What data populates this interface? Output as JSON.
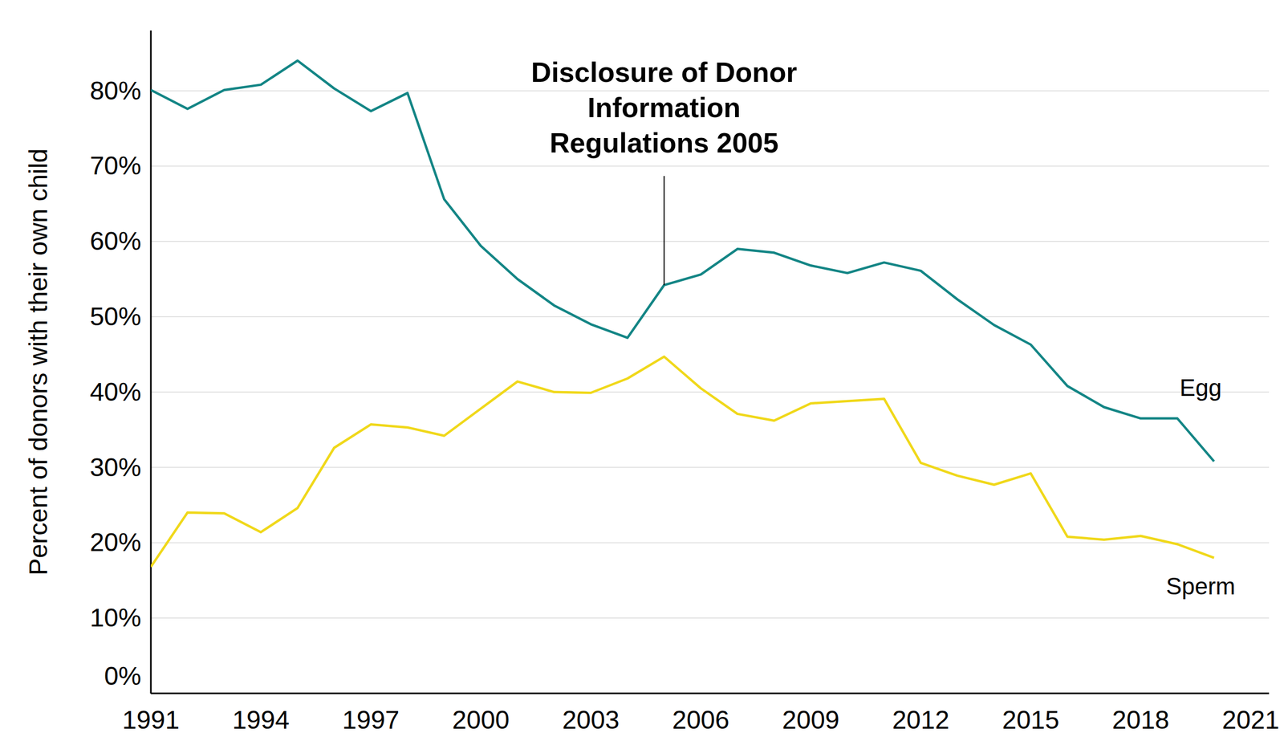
{
  "chart_data": {
    "type": "line",
    "y_label": "Percent of donors with their own child",
    "x": [
      1991,
      1992,
      1993,
      1994,
      1995,
      1996,
      1997,
      1998,
      1999,
      2000,
      2001,
      2002,
      2003,
      2004,
      2005,
      2006,
      2007,
      2008,
      2009,
      2010,
      2011,
      2012,
      2013,
      2014,
      2015,
      2016,
      2017,
      2018,
      2019,
      2020
    ],
    "series": [
      {
        "name": "Egg",
        "color": "#138585",
        "values": [
          80.1,
          77.6,
          80.1,
          80.8,
          84.0,
          80.3,
          77.3,
          79.7,
          65.6,
          59.4,
          55.0,
          51.5,
          49.0,
          47.2,
          54.2,
          55.6,
          59.0,
          58.5,
          56.8,
          55.8,
          57.2,
          56.1,
          52.3,
          48.9,
          46.3,
          40.8,
          38.0,
          36.5,
          36.5,
          30.8
        ]
      },
      {
        "name": "Sperm",
        "color": "#f0d81a",
        "values": [
          16.8,
          24.0,
          23.9,
          21.4,
          24.6,
          32.6,
          35.7,
          35.3,
          34.2,
          37.8,
          41.4,
          40.0,
          39.9,
          41.8,
          44.7,
          40.5,
          37.1,
          36.2,
          38.5,
          38.8,
          39.1,
          30.6,
          28.9,
          27.7,
          29.2,
          20.8,
          20.4,
          20.9,
          19.8,
          18.0
        ]
      }
    ],
    "xlim": [
      1991,
      2021.5
    ],
    "xticks": [
      1991,
      1994,
      1997,
      2000,
      2003,
      2006,
      2009,
      2012,
      2015,
      2018,
      2021
    ],
    "ylim": [
      0,
      88
    ],
    "yticks": [
      {
        "value": 0,
        "label": "0%"
      },
      {
        "value": 10,
        "label": "10%"
      },
      {
        "value": 20,
        "label": "20%"
      },
      {
        "value": 30,
        "label": "30%"
      },
      {
        "value": 40,
        "label": "40%"
      },
      {
        "value": 50,
        "label": "50%"
      },
      {
        "value": 60,
        "label": "60%"
      },
      {
        "value": 70,
        "label": "70%"
      },
      {
        "value": 80,
        "label": "80%"
      }
    ],
    "grid": true,
    "legend": "direct",
    "annotations": [
      {
        "text": [
          "Disclosure of Donor",
          "Information",
          "Regulations 2005"
        ],
        "x": 2005
      }
    ]
  }
}
